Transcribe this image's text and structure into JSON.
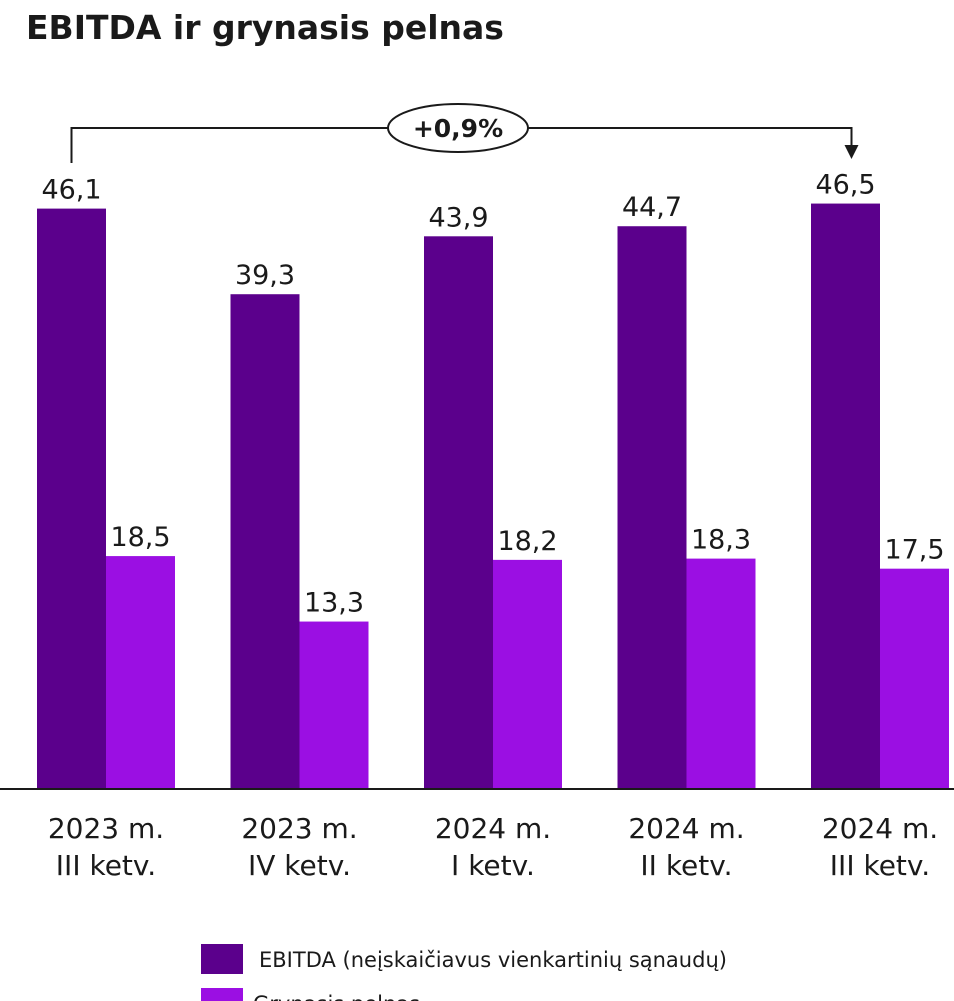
{
  "chart_data": {
    "type": "bar",
    "title": "EBITDA ir grynasis pelnas",
    "categories": [
      [
        "2023 m.",
        "III ketv."
      ],
      [
        "2023 m.",
        "IV ketv."
      ],
      [
        "2024 m.",
        "I ketv."
      ],
      [
        "2024 m.",
        "II ketv."
      ],
      [
        "2024 m.",
        "III ketv."
      ]
    ],
    "series": [
      {
        "name": "EBITDA (neįskaičiavus vienkartinių sąnaudų)",
        "color": "#5b008c",
        "values": [
          46.1,
          39.3,
          43.9,
          44.7,
          46.5
        ],
        "labels": [
          "46,1",
          "39,3",
          "43,9",
          "44,7",
          "46,5"
        ]
      },
      {
        "name": "Grynasis pelnas",
        "color": "#9b0fe3",
        "values": [
          18.5,
          13.3,
          18.2,
          18.3,
          17.5
        ],
        "labels": [
          "18,5",
          "13,3",
          "18,2",
          "18,3",
          "17,5"
        ]
      }
    ],
    "ylim": [
      0,
      50
    ],
    "grid": false,
    "legend_position": "bottom-center",
    "annotation": {
      "text": "+0,9%",
      "from_category": 0,
      "to_category": 4
    }
  }
}
